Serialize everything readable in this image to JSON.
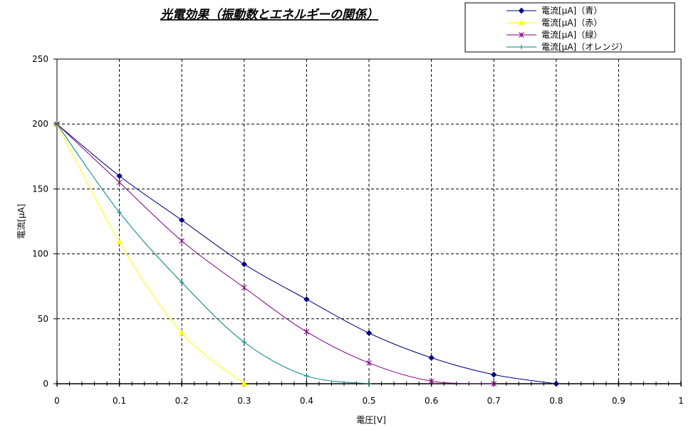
{
  "chart_data": {
    "type": "line",
    "title": "光電効果（振動数とエネルギーの関係）",
    "xlabel": "電圧[V]",
    "ylabel": "電流[μA]",
    "xlim": [
      0,
      1
    ],
    "ylim": [
      0,
      250
    ],
    "x_ticks": [
      "0",
      "0.1",
      "0.2",
      "0.3",
      "0.4",
      "0.5",
      "0.6",
      "0.7",
      "0.8",
      "0.9",
      "1"
    ],
    "y_ticks": [
      "0",
      "50",
      "100",
      "150",
      "200",
      "250"
    ],
    "grid": true,
    "legend_position": "top-right",
    "series": [
      {
        "name": "電流[μA]（青）",
        "color": "#000080",
        "marker": "diamond",
        "x": [
          0,
          0.1,
          0.2,
          0.3,
          0.4,
          0.5,
          0.6,
          0.7,
          0.8
        ],
        "y": [
          200,
          160,
          126,
          92,
          65,
          39,
          20,
          7,
          0
        ]
      },
      {
        "name": "電流[μA]（赤）",
        "color": "#FFFF00",
        "marker": "triangle",
        "x": [
          0,
          0.1,
          0.2,
          0.3
        ],
        "y": [
          200,
          109,
          39,
          0
        ]
      },
      {
        "name": "電流[μA]（緑）",
        "color": "#800080",
        "marker": "x",
        "x": [
          0,
          0.1,
          0.2,
          0.3,
          0.4,
          0.5,
          0.6,
          0.7
        ],
        "y": [
          200,
          155,
          110,
          74,
          40,
          16,
          2,
          0
        ]
      },
      {
        "name": "電流[μA]（オレンジ）",
        "color": "#008080",
        "marker": "plus",
        "x": [
          0,
          0.1,
          0.2,
          0.3,
          0.4,
          0.5
        ],
        "y": [
          200,
          132,
          78,
          32,
          6,
          0
        ]
      }
    ]
  }
}
